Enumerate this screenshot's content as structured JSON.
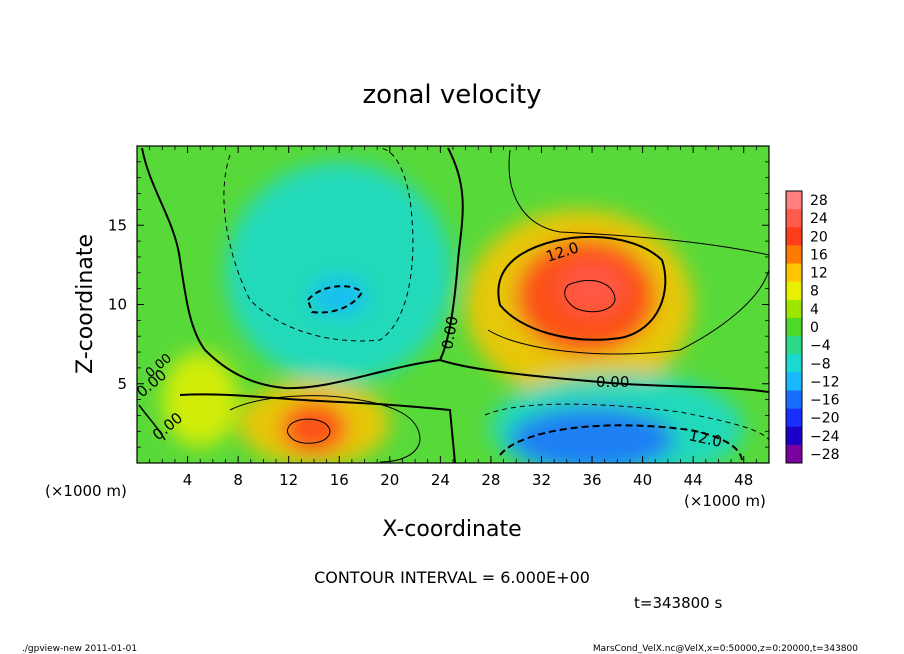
{
  "chart_data": {
    "type": "heatmap",
    "title": "zonal velocity",
    "xlabel": "X-coordinate",
    "ylabel": "Z-coordinate",
    "x_unit": "(×1000 m)",
    "y_unit": "(×1000 m)",
    "xlim": [
      0,
      50
    ],
    "ylim": [
      0,
      20
    ],
    "x_ticks": [
      4,
      8,
      12,
      16,
      20,
      24,
      28,
      32,
      36,
      40,
      44,
      48
    ],
    "y_ticks": [
      5,
      10,
      15
    ],
    "colorbar": {
      "levels": [
        28,
        24,
        20,
        16,
        12,
        8,
        4,
        0,
        -4,
        -8,
        -12,
        -16,
        -20,
        -24,
        -28
      ],
      "labels": [
        "28",
        "24",
        "20",
        "16",
        "12",
        "8",
        "4",
        "0",
        "−4",
        "−8",
        "−12",
        "−16",
        "−20",
        "−24",
        "−28"
      ],
      "colors": [
        "#ff8080",
        "#ff5b4d",
        "#ff3d1a",
        "#ff7a00",
        "#ffc400",
        "#e8f000",
        "#9ee600",
        "#4dd92a",
        "#2ad98a",
        "#19d9d0",
        "#19b8ff",
        "#1a6eff",
        "#1a2eff",
        "#1a00c8",
        "#7a00a0"
      ]
    },
    "contour_interval": 6.0,
    "contour_labels": [
      "12.0",
      "0.00",
      "0.00",
      "0.00",
      "0.00",
      "0.00",
      "12.0"
    ],
    "field_blobs": [
      {
        "x": 35.5,
        "y": 10.5,
        "value": 20,
        "rx": 5.5,
        "ry": 3.6
      },
      {
        "x": 36,
        "y": 11,
        "value": 24,
        "rx": 2.6,
        "ry": 1.6
      },
      {
        "x": 35,
        "y": 10,
        "value": 12,
        "rx": 9,
        "ry": 6
      },
      {
        "x": 14,
        "y": 2.2,
        "value": 18,
        "rx": 2.6,
        "ry": 1.6
      },
      {
        "x": 14,
        "y": 2.5,
        "value": 10,
        "rx": 6,
        "ry": 2.7
      },
      {
        "x": 36,
        "y": 1.5,
        "value": -16,
        "rx": 6.5,
        "ry": 2
      },
      {
        "x": 38,
        "y": 2.2,
        "value": -10,
        "rx": 10,
        "ry": 3.5
      },
      {
        "x": 16,
        "y": 10.5,
        "value": -14,
        "rx": 2.2,
        "ry": 1.2
      },
      {
        "x": 16,
        "y": 12,
        "value": -8,
        "rx": 9,
        "ry": 7
      },
      {
        "x": 5,
        "y": 4,
        "value": 6,
        "rx": 3,
        "ry": 3
      }
    ]
  },
  "contour_interval_text": "CONTOUR INTERVAL = 6.000E+00",
  "time_text": "t=343800 s",
  "footer_left": "./gpview-new  2011-01-01",
  "footer_right": "MarsCond_VelX.nc@VelX,x=0:50000,z=0:20000,t=343800"
}
